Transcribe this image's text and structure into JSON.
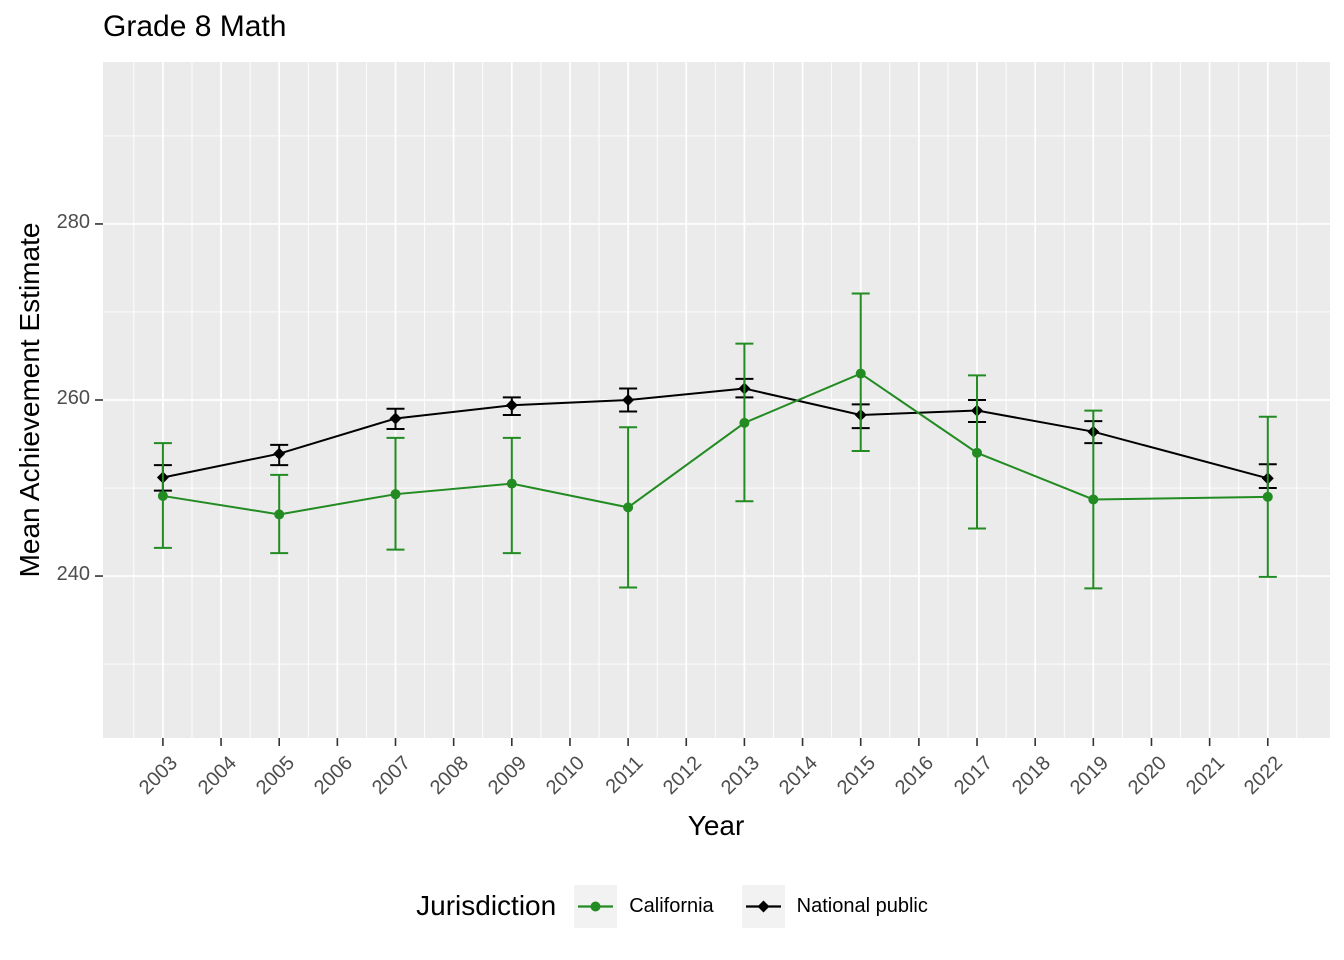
{
  "title": "Grade 8 Math",
  "x_axis": {
    "label": "Year",
    "tick_labels": [
      "2003",
      "2004",
      "2005",
      "2006",
      "2007",
      "2008",
      "2009",
      "2010",
      "2011",
      "2012",
      "2013",
      "2014",
      "2015",
      "2016",
      "2017",
      "2018",
      "2019",
      "2020",
      "2021",
      "2022"
    ]
  },
  "y_axis": {
    "label": "Mean Achievement Estimate",
    "tick_labels": [
      "240",
      "260",
      "280"
    ]
  },
  "legend": {
    "title": "Jurisdiction",
    "entries": [
      {
        "label": "California",
        "color": "#228B22",
        "marker": "circle"
      },
      {
        "label": "National public",
        "color": "#000000",
        "marker": "diamond"
      }
    ]
  },
  "colors": {
    "panel_bg": "#EBEBEB",
    "grid": "#FFFFFF",
    "tick_mark": "#333333",
    "tick_text": "#4D4D4D",
    "legend_key_bg": "#F2F2F2",
    "california": "#228B22",
    "national_public": "#000000"
  },
  "chart_data": {
    "type": "line",
    "title": "Grade 8 Math",
    "xlabel": "Year",
    "ylabel": "Mean Achievement Estimate",
    "grid": true,
    "error_bars": true,
    "legend_position": "bottom",
    "xlim": [
      2001.97,
      2023.07
    ],
    "ylim": [
      221.6,
      298.4
    ],
    "x_ticks": [
      2003,
      2004,
      2005,
      2006,
      2007,
      2008,
      2009,
      2010,
      2011,
      2012,
      2013,
      2014,
      2015,
      2016,
      2017,
      2018,
      2019,
      2020,
      2021,
      2022
    ],
    "y_ticks": [
      240,
      260,
      280
    ],
    "y_minor_ticks": [
      230,
      250,
      270,
      290
    ],
    "series": [
      {
        "name": "National public",
        "color": "#000000",
        "marker": "diamond",
        "x": [
          2003,
          2005,
          2007,
          2009,
          2011,
          2013,
          2015,
          2017,
          2019,
          2022
        ],
        "y": [
          251.2,
          253.9,
          257.9,
          259.4,
          260.0,
          261.3,
          258.3,
          258.8,
          256.4,
          251.1
        ],
        "ci_low": [
          249.7,
          252.6,
          256.7,
          258.3,
          258.7,
          260.3,
          256.8,
          257.5,
          255.1,
          250.0
        ],
        "ci_high": [
          252.6,
          254.9,
          259.0,
          260.3,
          261.3,
          262.4,
          259.5,
          260.0,
          257.6,
          252.7
        ]
      },
      {
        "name": "California",
        "color": "#228B22",
        "marker": "circle",
        "x": [
          2003,
          2005,
          2007,
          2009,
          2011,
          2013,
          2015,
          2017,
          2019,
          2022
        ],
        "y": [
          249.1,
          247.0,
          249.3,
          250.5,
          247.8,
          257.4,
          263.0,
          254.0,
          248.7,
          249.0
        ],
        "ci_low": [
          243.2,
          242.6,
          243.0,
          242.6,
          238.7,
          248.5,
          254.2,
          245.4,
          238.6,
          239.9
        ],
        "ci_high": [
          255.1,
          251.5,
          255.7,
          255.7,
          256.9,
          266.4,
          272.1,
          262.8,
          258.8,
          258.1
        ]
      }
    ]
  }
}
